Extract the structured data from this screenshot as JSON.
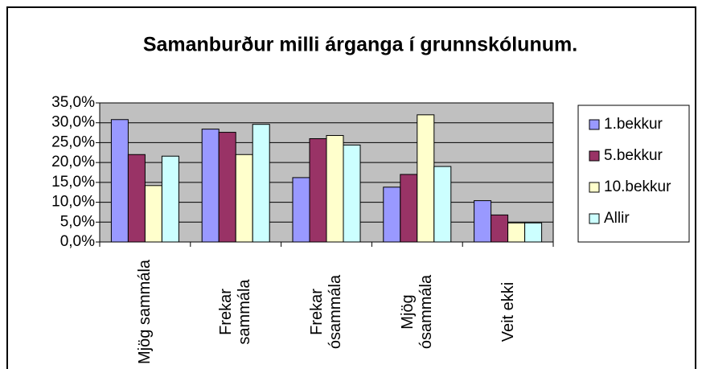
{
  "chart_data": {
    "type": "bar",
    "title": "Samanburður milli árganga í grunnskólunum.",
    "categories": [
      "Mjög sammála",
      "Frekar sammála",
      "Frekar ósammála",
      "Mjög ósammála",
      "Veit ekki"
    ],
    "series": [
      {
        "name": "1.bekkur",
        "color": "#9999ff",
        "values": [
          30.8,
          28.4,
          16.2,
          13.8,
          10.4
        ]
      },
      {
        "name": "5.bekkur",
        "color": "#993366",
        "values": [
          22.0,
          27.6,
          26.0,
          17.0,
          6.8
        ]
      },
      {
        "name": "10.bekkur",
        "color": "#ffffcc",
        "values": [
          14.2,
          22.0,
          26.8,
          32.0,
          4.8
        ]
      },
      {
        "name": "Allir",
        "color": "#ccffff",
        "values": [
          21.6,
          29.6,
          24.4,
          19.0,
          4.8
        ]
      }
    ],
    "ylim": [
      0,
      35
    ],
    "yticks": [
      {
        "value": 0,
        "label": "0,0%"
      },
      {
        "value": 5,
        "label": "5,0%"
      },
      {
        "value": 10,
        "label": "10,0%"
      },
      {
        "value": 15,
        "label": "15,0%"
      },
      {
        "value": 20,
        "label": "20,0%"
      },
      {
        "value": 25,
        "label": "25,0%"
      },
      {
        "value": 30,
        "label": "30,0%"
      },
      {
        "value": 35,
        "label": "35,0%"
      }
    ],
    "grid": true,
    "legend": "right",
    "plot_background": "#c0c0c0"
  }
}
